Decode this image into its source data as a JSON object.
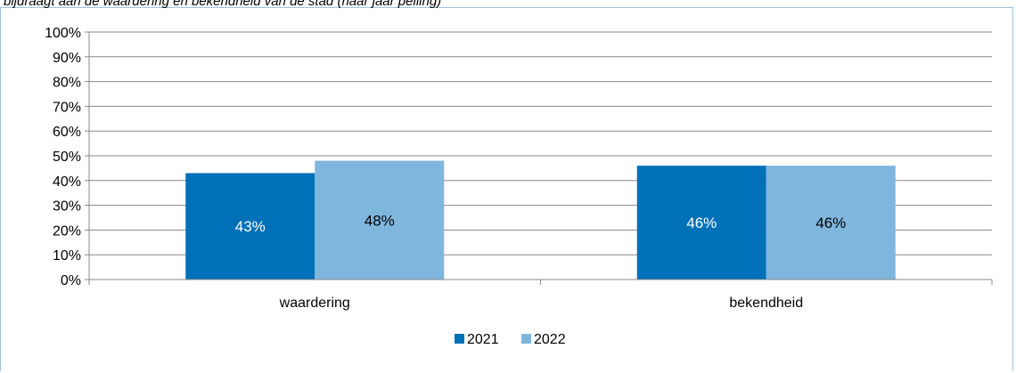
{
  "caption": "bijdraagt aan de waardering en bekendheid van de stad (naar jaar peiling)",
  "chart_data": {
    "type": "bar",
    "categories": [
      "waardering",
      "bekendheid"
    ],
    "series": [
      {
        "name": "2021",
        "values": [
          43,
          46
        ],
        "color": "#0070b8",
        "label_color": "#ffffff"
      },
      {
        "name": "2022",
        "values": [
          48,
          46
        ],
        "color": "#7fb6de",
        "label_color": "#000000"
      }
    ],
    "data_labels": [
      [
        "43%",
        "46%"
      ],
      [
        "48%",
        "46%"
      ]
    ],
    "y_ticks": [
      "0%",
      "10%",
      "20%",
      "30%",
      "40%",
      "50%",
      "60%",
      "70%",
      "80%",
      "90%",
      "100%"
    ],
    "ylim": [
      0,
      100
    ],
    "grid": true,
    "legend_position": "bottom"
  }
}
